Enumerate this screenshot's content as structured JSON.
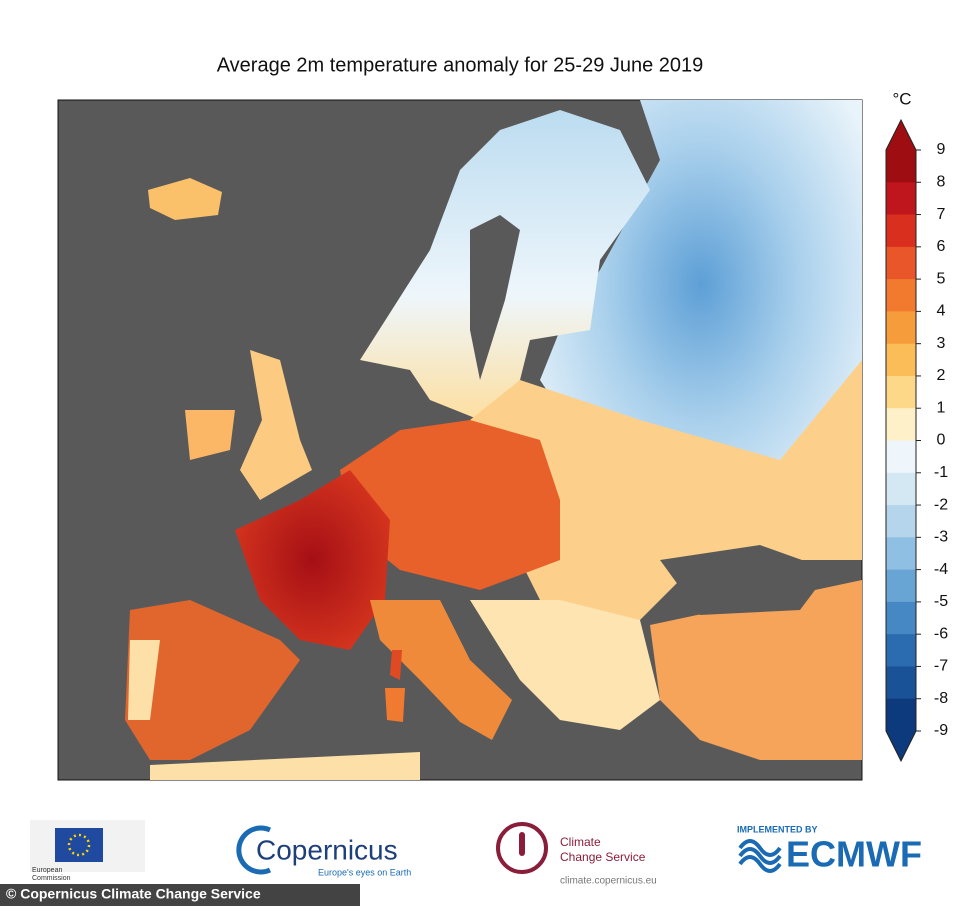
{
  "title": "Average 2m temperature anomaly for 25-29 June 2019",
  "colorbar": {
    "unit": "°C",
    "ticks": [
      9,
      8,
      7,
      6,
      5,
      4,
      3,
      2,
      1,
      0,
      -1,
      -2,
      -3,
      -4,
      -5,
      -6,
      -7,
      -8,
      -9
    ],
    "colors": [
      "#9e0d12",
      "#be161c",
      "#d92f1f",
      "#e8562a",
      "#f27a2e",
      "#f79c3a",
      "#fbbd57",
      "#fdd889",
      "#fef0c8",
      "#eef6fb",
      "#d4e8f4",
      "#b4d5ec",
      "#8fbfe2",
      "#68a5d5",
      "#4688c4",
      "#2b6bb0",
      "#1a5298",
      "#0c3a7c"
    ]
  },
  "logos": {
    "eu": {
      "line1": "European",
      "line2": "Commission"
    },
    "copernicus": {
      "name": "Copernicus",
      "tagline": "Europe's eyes on Earth"
    },
    "climate": {
      "line1": "Climate",
      "line2": "Change Service",
      "url": "climate.copernicus.eu"
    },
    "ecmwf": {
      "caption": "IMPLEMENTED BY",
      "name": "ECMWF"
    }
  },
  "copyright": "© Copernicus Climate Change Service"
}
